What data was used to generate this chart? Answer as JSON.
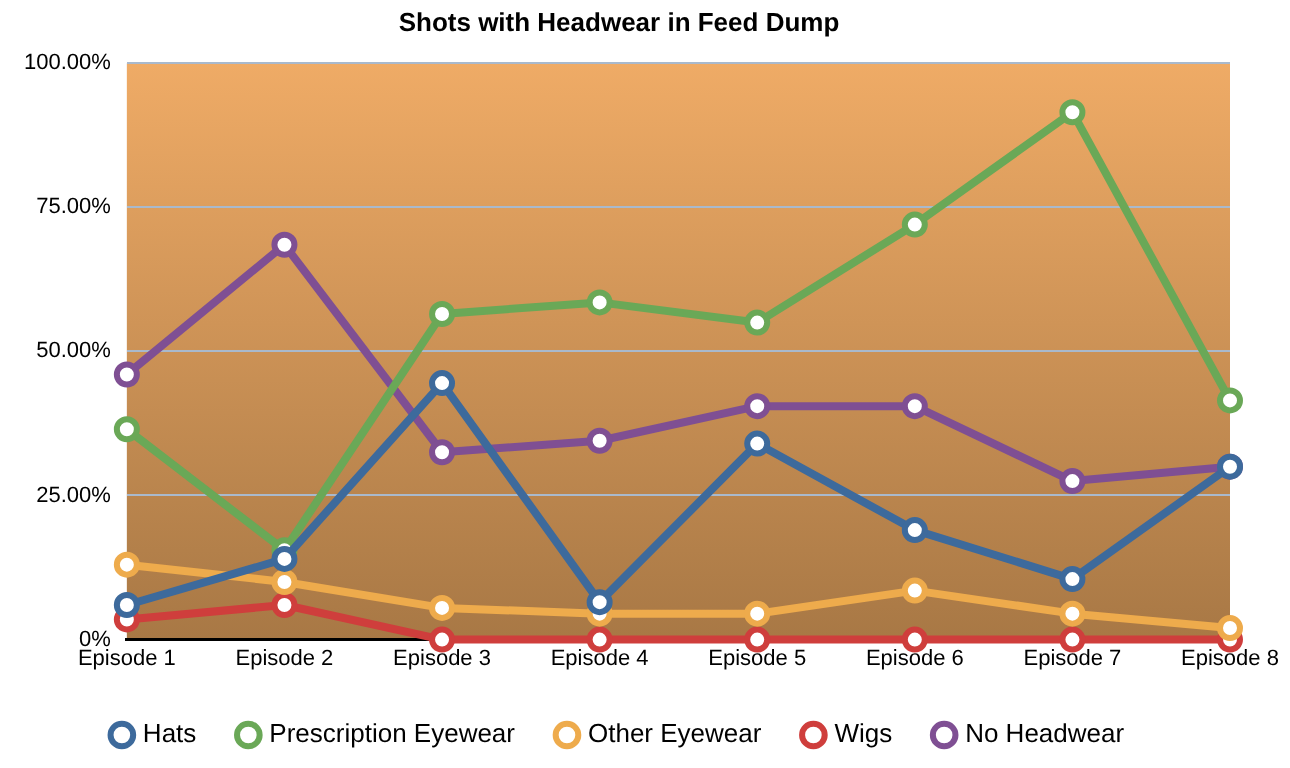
{
  "chart_data": {
    "type": "line",
    "title": "Shots with Headwear in Feed Dump",
    "categories": [
      "Episode 1",
      "Episode 2",
      "Episode 3",
      "Episode 4",
      "Episode 5",
      "Episode 6",
      "Episode 7",
      "Episode 8"
    ],
    "series": [
      {
        "name": "Hats",
        "color": "#3d6a9c",
        "values": [
          6,
          14,
          44.5,
          6.5,
          34,
          19,
          10.5,
          30
        ]
      },
      {
        "name": "Prescription Eyewear",
        "color": "#6aa857",
        "values": [
          36.5,
          15.5,
          56.5,
          58.5,
          55,
          72,
          91.5,
          41.5
        ]
      },
      {
        "name": "Other Eyewear",
        "color": "#eeab4c",
        "values": [
          13,
          10,
          5.5,
          4.5,
          4.5,
          8.5,
          4.5,
          2
        ]
      },
      {
        "name": "Wigs",
        "color": "#cf3e3c",
        "values": [
          3.5,
          6,
          0,
          0,
          0,
          0,
          0,
          0
        ]
      },
      {
        "name": "No Headwear",
        "color": "#7f4f93",
        "values": [
          46,
          68.5,
          32.5,
          34.5,
          40.5,
          40.5,
          27.5,
          30
        ]
      }
    ],
    "ylim": [
      0,
      100
    ],
    "yticks": [
      {
        "value": 0,
        "label": "0%"
      },
      {
        "value": 25,
        "label": "25.00%"
      },
      {
        "value": 50,
        "label": "50.00%"
      },
      {
        "value": 75,
        "label": "75.00%"
      },
      {
        "value": 100,
        "label": "100.00%"
      }
    ],
    "grid": "y",
    "legend": "bottom",
    "marker": "circle",
    "line_style": "solid"
  }
}
